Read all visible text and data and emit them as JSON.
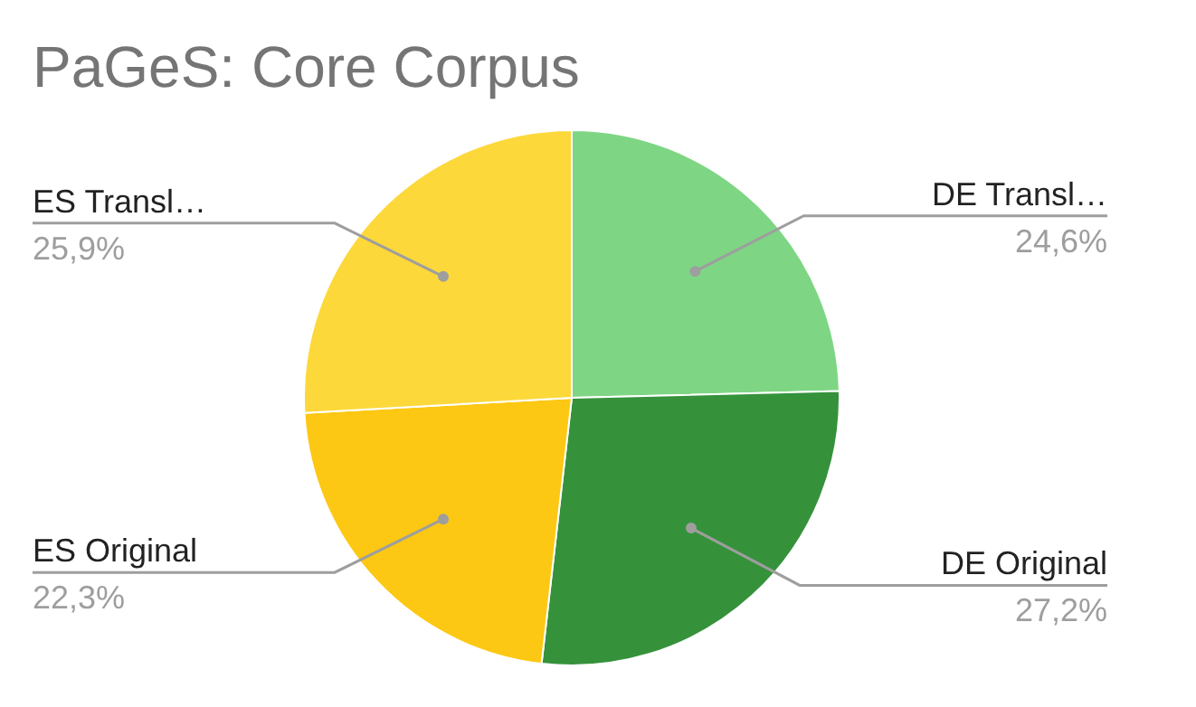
{
  "chart_data": {
    "type": "pie",
    "title": "PaGeS: Core Corpus",
    "categories": [
      "DE Transl…",
      "DE Original",
      "ES Original",
      "ES Transl…"
    ],
    "values": [
      24.6,
      27.2,
      22.3,
      25.9
    ],
    "value_labels": [
      "24,6%",
      "27,2%",
      "22,3%",
      "25,9%"
    ],
    "colors": [
      "#7ed684",
      "#35923b",
      "#fcc813",
      "#fdd83a"
    ]
  }
}
